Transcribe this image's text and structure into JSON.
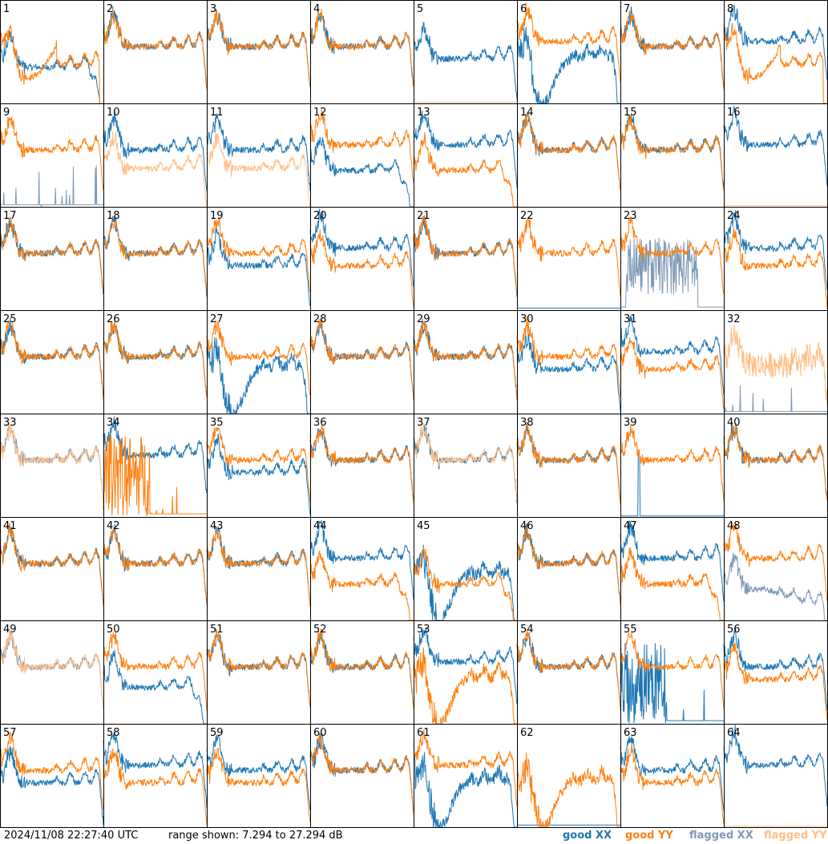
{
  "footer": {
    "timestamp": "2024/11/08 22:27:40 UTC",
    "range_text": "range shown: 7.294 to 27.294 dB",
    "legend": {
      "good_xx": "good XX",
      "good_yy": "good YY",
      "flagged_xx": "flagged XX",
      "flagged_yy": "flagged YY"
    }
  },
  "colors": {
    "good_xx": "#1f77b4",
    "good_yy": "#ff7f0e",
    "flagged_xx": "#7f99b4",
    "flagged_yy": "#ffbf86"
  },
  "chart_data": {
    "type": "line",
    "grid": {
      "rows": 8,
      "cols": 8
    },
    "ylim": [
      7.294,
      27.294
    ],
    "yunit": "dB",
    "panels": [
      {
        "n": 1,
        "xx": "drop",
        "yy": "dip"
      },
      {
        "n": 2,
        "xx": "normal",
        "yy": "normal"
      },
      {
        "n": 3,
        "xx": "normal",
        "yy": "normal"
      },
      {
        "n": 4,
        "xx": "normal",
        "yy": "normal"
      },
      {
        "n": 5,
        "xx": "low",
        "yy": "flag_line"
      },
      {
        "n": 6,
        "xx": "deep",
        "yy": "high"
      },
      {
        "n": 7,
        "xx": "normal",
        "yy": "normal"
      },
      {
        "n": 8,
        "xx": "high",
        "yy": "dip"
      },
      {
        "n": 9,
        "xx": "flag_spikes",
        "yy": "normal"
      },
      {
        "n": 10,
        "xx": "normal",
        "yy": "flag_low"
      },
      {
        "n": 11,
        "xx": "normal",
        "yy": "flag_low"
      },
      {
        "n": 12,
        "xx": "drop",
        "yy": "high"
      },
      {
        "n": 13,
        "xx": "high",
        "yy": "drop"
      },
      {
        "n": 14,
        "xx": "normal",
        "yy": "normal"
      },
      {
        "n": 15,
        "xx": "normal",
        "yy": "normal"
      },
      {
        "n": 16,
        "xx": "high",
        "yy": "flag_line"
      },
      {
        "n": 17,
        "xx": "normal",
        "yy": "normal"
      },
      {
        "n": 18,
        "xx": "normal",
        "yy": "normal"
      },
      {
        "n": 19,
        "xx": "low",
        "yy": "normal"
      },
      {
        "n": 20,
        "xx": "high",
        "yy": "low"
      },
      {
        "n": 21,
        "xx": "normal",
        "yy": "normal"
      },
      {
        "n": 22,
        "xx": "flat",
        "yy": "normal"
      },
      {
        "n": 23,
        "xx": "flag_noise",
        "yy": "normal"
      },
      {
        "n": 24,
        "xx": "high",
        "yy": "low"
      },
      {
        "n": 25,
        "xx": "normal",
        "yy": "normal"
      },
      {
        "n": 26,
        "xx": "normal",
        "yy": "normal"
      },
      {
        "n": 27,
        "xx": "deep",
        "yy": "normal"
      },
      {
        "n": 28,
        "xx": "normal",
        "yy": "normal"
      },
      {
        "n": 29,
        "xx": "normal",
        "yy": "normal"
      },
      {
        "n": 30,
        "xx": "low",
        "yy": "normal"
      },
      {
        "n": 31,
        "xx": "high",
        "yy": "low"
      },
      {
        "n": 32,
        "xx": "flag_spikes",
        "yy": "flag_noisy"
      },
      {
        "n": 33,
        "xx": "flag_normal",
        "yy": "flag_normal"
      },
      {
        "n": 34,
        "xx": "high",
        "yy": "spikes"
      },
      {
        "n": 35,
        "xx": "low",
        "yy": "normal"
      },
      {
        "n": 36,
        "xx": "normal",
        "yy": "normal"
      },
      {
        "n": 37,
        "xx": "normal",
        "yy": "flag_normal"
      },
      {
        "n": 38,
        "xx": "normal",
        "yy": "normal"
      },
      {
        "n": 39,
        "xx": "spike",
        "yy": "normal"
      },
      {
        "n": 40,
        "xx": "normal",
        "yy": "normal"
      },
      {
        "n": 41,
        "xx": "normal",
        "yy": "normal"
      },
      {
        "n": 42,
        "xx": "normal",
        "yy": "normal"
      },
      {
        "n": 43,
        "xx": "normal",
        "yy": "normal"
      },
      {
        "n": 44,
        "xx": "high",
        "yy": "drop"
      },
      {
        "n": 45,
        "xx": "deep",
        "yy": "drop"
      },
      {
        "n": 46,
        "xx": "normal",
        "yy": "normal"
      },
      {
        "n": 47,
        "xx": "high",
        "yy": "drop"
      },
      {
        "n": 48,
        "xx": "flag_drop",
        "yy": "high"
      },
      {
        "n": 49,
        "xx": "flag_normal",
        "yy": "flag_normal"
      },
      {
        "n": 50,
        "xx": "drop",
        "yy": "normal"
      },
      {
        "n": 51,
        "xx": "normal",
        "yy": "normal"
      },
      {
        "n": 52,
        "xx": "normal",
        "yy": "normal"
      },
      {
        "n": 53,
        "xx": "high",
        "yy": "deep"
      },
      {
        "n": 54,
        "xx": "normal",
        "yy": "normal"
      },
      {
        "n": 55,
        "xx": "spikes",
        "yy": "normal"
      },
      {
        "n": 56,
        "xx": "normal",
        "yy": "low"
      },
      {
        "n": 57,
        "xx": "low",
        "yy": "normal"
      },
      {
        "n": 58,
        "xx": "high",
        "yy": "low"
      },
      {
        "n": 59,
        "xx": "normal",
        "yy": "low"
      },
      {
        "n": 60,
        "xx": "normal",
        "yy": "normal"
      },
      {
        "n": 61,
        "xx": "deep",
        "yy": "high"
      },
      {
        "n": 62,
        "xx": "flat",
        "yy": "deep"
      },
      {
        "n": 63,
        "xx": "normal",
        "yy": "low"
      },
      {
        "n": 64,
        "xx": "high",
        "yy": "flag_line"
      }
    ]
  }
}
